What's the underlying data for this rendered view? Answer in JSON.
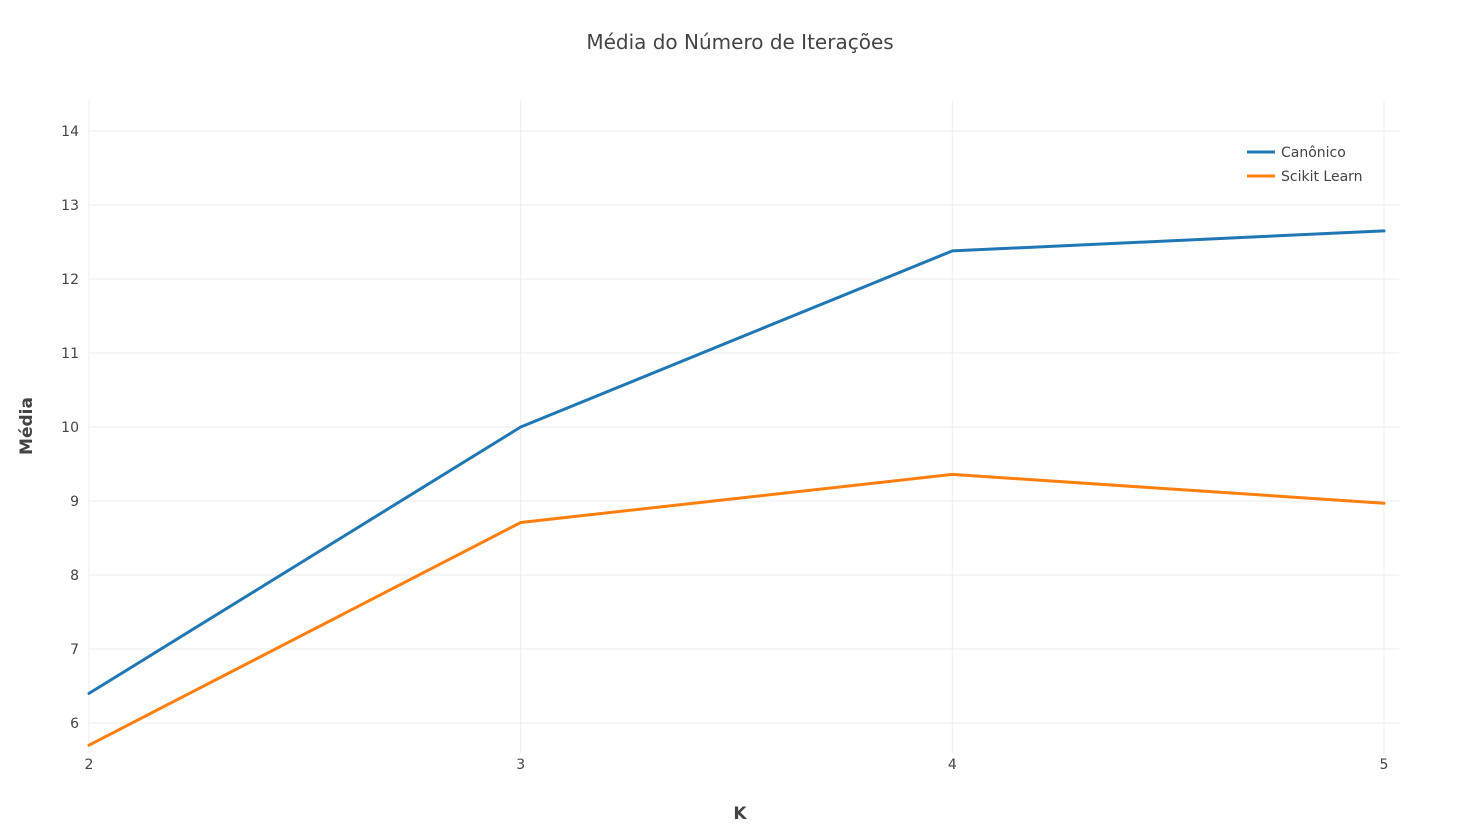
{
  "chart_data": {
    "type": "line",
    "title": "Média do Número de Iterações",
    "xlabel": "K",
    "ylabel": "Média",
    "x": [
      2,
      3,
      4,
      5
    ],
    "xticks": [
      "2",
      "3",
      "4",
      "5"
    ],
    "yticks": [
      "6",
      "7",
      "8",
      "9",
      "10",
      "11",
      "12",
      "13",
      "14"
    ],
    "xlim": [
      2,
      5.035
    ],
    "ylim": [
      5.6,
      14.4
    ],
    "grid": true,
    "legend_position": "top-right",
    "series": [
      {
        "name": "Canônico",
        "color": "#1f77b4",
        "values": [
          6.4,
          10.0,
          12.38,
          12.65
        ]
      },
      {
        "name": "Scikit Learn",
        "color": "#ff7f0e",
        "values": [
          5.7,
          8.71,
          9.36,
          8.97
        ]
      }
    ]
  }
}
